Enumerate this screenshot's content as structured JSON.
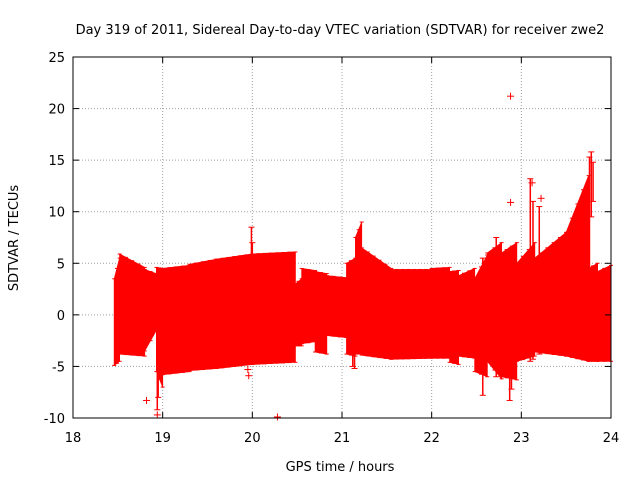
{
  "chart_data": {
    "type": "scatter",
    "title": "Day 319 of 2011, Sidereal Day-to-day VTEC variation (SDTVAR) for receiver zwe2",
    "xlabel": "GPS time / hours",
    "ylabel": "SDTVAR / TECUs",
    "xlim": [
      18,
      24
    ],
    "ylim": [
      -10,
      25
    ],
    "xticks": [
      "18",
      "19",
      "20",
      "21",
      "22",
      "23",
      "24"
    ],
    "yticks": [
      "-10",
      "-5",
      "0",
      "5",
      "10",
      "15",
      "20",
      "25"
    ],
    "grid": true,
    "colors": {
      "series": "#ff0000",
      "grid": "#a0a0a0",
      "axis": "#000000"
    },
    "series": [
      {
        "name": "SDTVAR",
        "style": "errorbars",
        "segments": [
          {
            "x_start": 18.46,
            "x_end": 18.52,
            "low_start": -4.9,
            "low_end": -4.5,
            "high_start": 3.5,
            "high_end": 5.5
          },
          {
            "x_start": 18.52,
            "x_end": 18.8,
            "low_start": -3.8,
            "low_end": -4.0,
            "high_start": 5.9,
            "high_end": 4.6
          },
          {
            "x_start": 18.8,
            "x_end": 18.93,
            "low_start": -3.5,
            "low_end": -1.5,
            "high_start": 4.4,
            "high_end": 4.0
          },
          {
            "x_start": 18.93,
            "x_end": 19.0,
            "low_start": -5.5,
            "low_end": -7.0,
            "high_start": 4.6,
            "high_end": 4.5
          },
          {
            "x_start": 19.0,
            "x_end": 19.3,
            "low_start": -5.8,
            "low_end": -5.5,
            "high_start": 4.5,
            "high_end": 4.8
          },
          {
            "x_start": 19.3,
            "x_end": 19.6,
            "low_start": -5.4,
            "low_end": -5.2,
            "high_start": 4.9,
            "high_end": 5.4
          },
          {
            "x_start": 19.6,
            "x_end": 20.0,
            "low_start": -5.2,
            "low_end": -4.8,
            "high_start": 5.4,
            "high_end": 5.9
          },
          {
            "x_start": 20.0,
            "x_end": 20.48,
            "low_start": -4.8,
            "low_end": -4.6,
            "high_start": 5.9,
            "high_end": 6.1
          },
          {
            "x_start": 20.48,
            "x_end": 20.55,
            "low_start": -3.0,
            "low_end": -3.0,
            "high_start": 3.0,
            "high_end": 3.5
          },
          {
            "x_start": 20.55,
            "x_end": 20.7,
            "low_start": -2.8,
            "low_end": -2.6,
            "high_start": 4.5,
            "high_end": 4.3
          },
          {
            "x_start": 20.7,
            "x_end": 20.83,
            "low_start": -3.6,
            "low_end": -3.8,
            "high_start": 4.2,
            "high_end": 4.0
          },
          {
            "x_start": 20.83,
            "x_end": 21.05,
            "low_start": -2.0,
            "low_end": -2.2,
            "high_start": 3.8,
            "high_end": 3.6
          },
          {
            "x_start": 21.05,
            "x_end": 21.15,
            "low_start": -3.8,
            "low_end": -4.0,
            "high_start": 5.0,
            "high_end": 5.5
          },
          {
            "x_start": 21.15,
            "x_end": 21.22,
            "low_start": -3.8,
            "low_end": -3.8,
            "high_start": 7.5,
            "high_end": 9.0
          },
          {
            "x_start": 21.22,
            "x_end": 21.55,
            "low_start": -3.9,
            "low_end": -4.3,
            "high_start": 6.5,
            "high_end": 4.5
          },
          {
            "x_start": 21.55,
            "x_end": 22.0,
            "low_start": -4.3,
            "low_end": -4.2,
            "high_start": 4.4,
            "high_end": 4.4
          },
          {
            "x_start": 22.0,
            "x_end": 22.2,
            "low_start": -4.2,
            "low_end": -4.2,
            "high_start": 4.5,
            "high_end": 4.6
          },
          {
            "x_start": 22.2,
            "x_end": 22.3,
            "low_start": -4.6,
            "low_end": -4.8,
            "high_start": 4.2,
            "high_end": 4.3
          },
          {
            "x_start": 22.3,
            "x_end": 22.48,
            "low_start": -4.0,
            "low_end": -4.2,
            "high_start": 3.8,
            "high_end": 4.5
          },
          {
            "x_start": 22.48,
            "x_end": 22.62,
            "low_start": -5.5,
            "low_end": -6.0,
            "high_start": 3.5,
            "high_end": 5.8
          },
          {
            "x_start": 22.62,
            "x_end": 22.78,
            "low_start": -4.5,
            "low_end": -6.2,
            "high_start": 6.0,
            "high_end": 7.0
          },
          {
            "x_start": 22.78,
            "x_end": 22.95,
            "low_start": -6.0,
            "low_end": -6.3,
            "high_start": 6.0,
            "high_end": 7.0
          },
          {
            "x_start": 22.95,
            "x_end": 23.15,
            "low_start": -4.5,
            "low_end": -4.0,
            "high_start": 5.0,
            "high_end": 7.0
          },
          {
            "x_start": 23.15,
            "x_end": 23.5,
            "low_start": -3.6,
            "low_end": -4.0,
            "high_start": 5.5,
            "high_end": 8.0
          },
          {
            "x_start": 23.5,
            "x_end": 23.75,
            "low_start": -4.0,
            "low_end": -4.5,
            "high_start": 8.0,
            "high_end": 13.5
          },
          {
            "x_start": 23.75,
            "x_end": 23.85,
            "low_start": -4.5,
            "low_end": -4.5,
            "high_start": 4.5,
            "high_end": 5.0
          },
          {
            "x_start": 23.85,
            "x_end": 24.0,
            "low_start": -4.5,
            "low_end": -4.5,
            "high_start": 4.2,
            "high_end": 4.8
          }
        ],
        "spikes": [
          {
            "x": 18.94,
            "low": -9.2,
            "high": 3.5
          },
          {
            "x": 18.95,
            "low": -8.0,
            "high": 3.8
          },
          {
            "x": 19.99,
            "low": -4.5,
            "high": 8.5
          },
          {
            "x": 20.0,
            "low": -4.5,
            "high": 7.0
          },
          {
            "x": 21.12,
            "low": -5.0,
            "high": 5.0
          },
          {
            "x": 21.14,
            "low": -5.2,
            "high": 5.2
          },
          {
            "x": 22.57,
            "low": -7.8,
            "high": 5.5
          },
          {
            "x": 22.72,
            "low": -6.0,
            "high": 7.5
          },
          {
            "x": 22.87,
            "low": -8.3,
            "high": 6.2
          },
          {
            "x": 22.89,
            "low": -7.2,
            "high": 6.5
          },
          {
            "x": 23.1,
            "low": -4.5,
            "high": 13.2
          },
          {
            "x": 23.13,
            "low": -4.3,
            "high": 11.0
          },
          {
            "x": 23.2,
            "low": -3.8,
            "high": 10.5
          },
          {
            "x": 23.76,
            "low": -4.3,
            "high": 15.3
          },
          {
            "x": 23.78,
            "low": 9.5,
            "high": 15.8
          },
          {
            "x": 23.8,
            "low": 11.0,
            "high": 14.8
          }
        ],
        "outliers": [
          {
            "x": 18.82,
            "y": -8.3
          },
          {
            "x": 18.94,
            "y": -9.7
          },
          {
            "x": 19.96,
            "y": -5.9
          },
          {
            "x": 19.95,
            "y": -5.3
          },
          {
            "x": 20.28,
            "y": -9.9
          },
          {
            "x": 22.88,
            "y": 21.2
          },
          {
            "x": 22.88,
            "y": 10.9
          },
          {
            "x": 23.22,
            "y": 11.3
          },
          {
            "x": 23.12,
            "y": 12.8
          }
        ]
      }
    ]
  }
}
